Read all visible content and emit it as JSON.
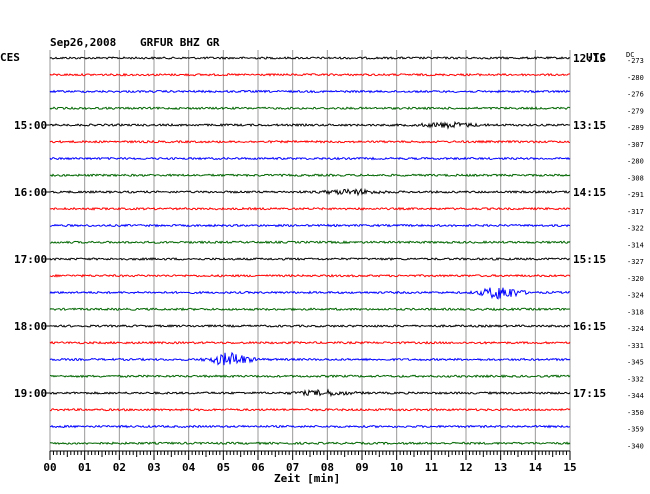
{
  "header": {
    "date": "Sep26,2008",
    "station": "GRFUR BHZ GR",
    "left_zone": "CES",
    "right_zone": "UTC",
    "dc_label": "DC"
  },
  "footer": {
    "xlabel": "Zeit [min]"
  },
  "chart_data": {
    "type": "line",
    "title": "Sep26,2008   GRFUR BHZ GR",
    "xlabel": "Zeit [min]",
    "xlim": [
      0,
      15
    ],
    "x_ticks": [
      "00",
      "01",
      "02",
      "03",
      "04",
      "05",
      "06",
      "07",
      "08",
      "09",
      "10",
      "11",
      "12",
      "13",
      "14",
      "15"
    ],
    "trace_colors": [
      "#000000",
      "#ff0000",
      "#0000ff",
      "#006600"
    ],
    "left_time_labels": [
      {
        "trace": 4,
        "label": "15:00"
      },
      {
        "trace": 8,
        "label": "16:00"
      },
      {
        "trace": 12,
        "label": "17:00"
      },
      {
        "trace": 16,
        "label": "18:00"
      },
      {
        "trace": 20,
        "label": "19:00"
      }
    ],
    "right_time_labels": [
      {
        "trace": 0,
        "label": "12:15"
      },
      {
        "trace": 4,
        "label": "13:15"
      },
      {
        "trace": 8,
        "label": "14:15"
      },
      {
        "trace": 12,
        "label": "15:15"
      },
      {
        "trace": 16,
        "label": "16:15"
      },
      {
        "trace": 20,
        "label": "17:15"
      }
    ],
    "dc_offsets": [
      "-273",
      "-280",
      "-276",
      "-279",
      "-289",
      "-307",
      "-280",
      "-308",
      "-291",
      "-317",
      "-322",
      "-314",
      "-327",
      "-320",
      "-324",
      "-318",
      "-324",
      "-331",
      "-345",
      "-332",
      "-344",
      "-350",
      "-359",
      "-340"
    ],
    "events": [
      {
        "trace": 14,
        "minute": 13.0,
        "amplitude": "large"
      },
      {
        "trace": 18,
        "minute": 5.2,
        "amplitude": "large"
      },
      {
        "trace": 8,
        "minute": 8.7,
        "amplitude": "small"
      },
      {
        "trace": 20,
        "minute": 7.9,
        "amplitude": "small"
      },
      {
        "trace": 4,
        "minute": 11.5,
        "amplitude": "small"
      }
    ]
  }
}
